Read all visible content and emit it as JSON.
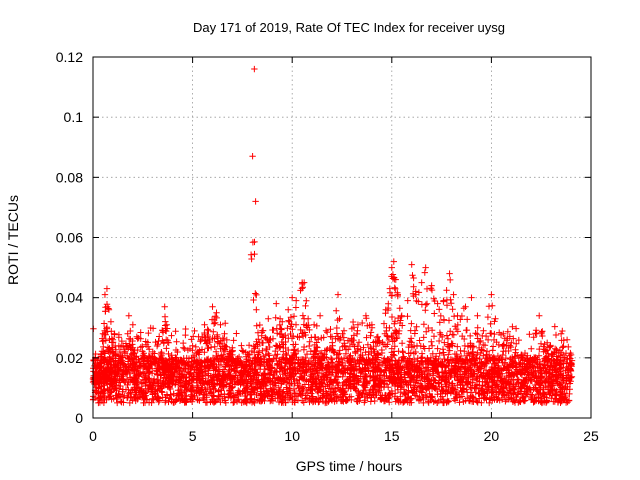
{
  "chart_data": {
    "type": "scatter",
    "title": "Day 171 of 2019, Rate Of TEC Index for receiver uysg",
    "xlabel": "GPS time / hours",
    "ylabel": "ROTI / TECUs",
    "xlim": [
      0,
      25
    ],
    "ylim": [
      0,
      0.12
    ],
    "xticks": [
      0,
      5,
      10,
      15,
      20,
      25
    ],
    "xtick_labels": [
      "0",
      "5",
      "10",
      "15",
      "20",
      "25"
    ],
    "yticks": [
      0,
      0.02,
      0.04,
      0.06,
      0.08,
      0.1,
      0.12
    ],
    "ytick_labels": [
      "0",
      "0.02",
      "0.04",
      "0.06",
      "0.08",
      "0.1",
      "0.12"
    ],
    "grid": true,
    "marker": "+",
    "color": "#ff0000",
    "series": [
      {
        "name": "ROTI",
        "points": [
          [
            0.0,
            0.013
          ],
          [
            0.2,
            0.017
          ],
          [
            0.4,
            0.021
          ],
          [
            0.5,
            0.028
          ],
          [
            0.6,
            0.041
          ],
          [
            0.7,
            0.043
          ],
          [
            0.8,
            0.036
          ],
          [
            0.9,
            0.032
          ],
          [
            1.0,
            0.026
          ],
          [
            1.3,
            0.024
          ],
          [
            1.6,
            0.022
          ],
          [
            1.8,
            0.034
          ],
          [
            2.0,
            0.031
          ],
          [
            2.2,
            0.027
          ],
          [
            2.6,
            0.02
          ],
          [
            3.0,
            0.022
          ],
          [
            3.3,
            0.019
          ],
          [
            3.6,
            0.037
          ],
          [
            3.7,
            0.031
          ],
          [
            3.8,
            0.025
          ],
          [
            4.2,
            0.02
          ],
          [
            4.6,
            0.023
          ],
          [
            5.0,
            0.024
          ],
          [
            5.3,
            0.027
          ],
          [
            5.6,
            0.031
          ],
          [
            5.8,
            0.029
          ],
          [
            6.0,
            0.037
          ],
          [
            6.2,
            0.035
          ],
          [
            6.4,
            0.031
          ],
          [
            6.6,
            0.028
          ],
          [
            7.0,
            0.021
          ],
          [
            7.4,
            0.019
          ],
          [
            7.8,
            0.021
          ],
          [
            8.1,
            0.116
          ],
          [
            8.2,
            0.036
          ],
          [
            8.5,
            0.029
          ],
          [
            8.8,
            0.033
          ],
          [
            9.2,
            0.038
          ],
          [
            9.5,
            0.032
          ],
          [
            9.8,
            0.036
          ],
          [
            10.0,
            0.04
          ],
          [
            10.2,
            0.039
          ],
          [
            10.5,
            0.045
          ],
          [
            10.6,
            0.045
          ],
          [
            10.8,
            0.033
          ],
          [
            11.1,
            0.031
          ],
          [
            11.4,
            0.034
          ],
          [
            11.7,
            0.029
          ],
          [
            12.0,
            0.027
          ],
          [
            12.3,
            0.041
          ],
          [
            12.6,
            0.029
          ],
          [
            13.0,
            0.026
          ],
          [
            13.3,
            0.031
          ],
          [
            13.7,
            0.034
          ],
          [
            14.0,
            0.031
          ],
          [
            14.3,
            0.027
          ],
          [
            14.7,
            0.036
          ],
          [
            14.9,
            0.043
          ],
          [
            15.0,
            0.05
          ],
          [
            15.1,
            0.052
          ],
          [
            15.2,
            0.046
          ],
          [
            15.3,
            0.041
          ],
          [
            15.5,
            0.034
          ],
          [
            15.8,
            0.039
          ],
          [
            16.0,
            0.051
          ],
          [
            16.2,
            0.041
          ],
          [
            16.5,
            0.045
          ],
          [
            16.7,
            0.05
          ],
          [
            17.0,
            0.044
          ],
          [
            17.3,
            0.038
          ],
          [
            17.6,
            0.039
          ],
          [
            17.9,
            0.048
          ],
          [
            18.1,
            0.041
          ],
          [
            18.3,
            0.034
          ],
          [
            18.7,
            0.037
          ],
          [
            19.0,
            0.04
          ],
          [
            19.3,
            0.034
          ],
          [
            19.6,
            0.029
          ],
          [
            20.0,
            0.041
          ],
          [
            20.2,
            0.033
          ],
          [
            20.6,
            0.028
          ],
          [
            21.0,
            0.025
          ],
          [
            21.5,
            0.021
          ],
          [
            22.0,
            0.023
          ],
          [
            22.4,
            0.034
          ],
          [
            22.8,
            0.025
          ],
          [
            23.2,
            0.023
          ],
          [
            23.5,
            0.028
          ],
          [
            23.8,
            0.026
          ],
          [
            24.0,
            0.021
          ]
        ],
        "density": {
          "description": "dense band of values along the whole day",
          "x_range": [
            0,
            24
          ],
          "y_base_range": [
            0.005,
            0.02
          ]
        }
      }
    ]
  }
}
